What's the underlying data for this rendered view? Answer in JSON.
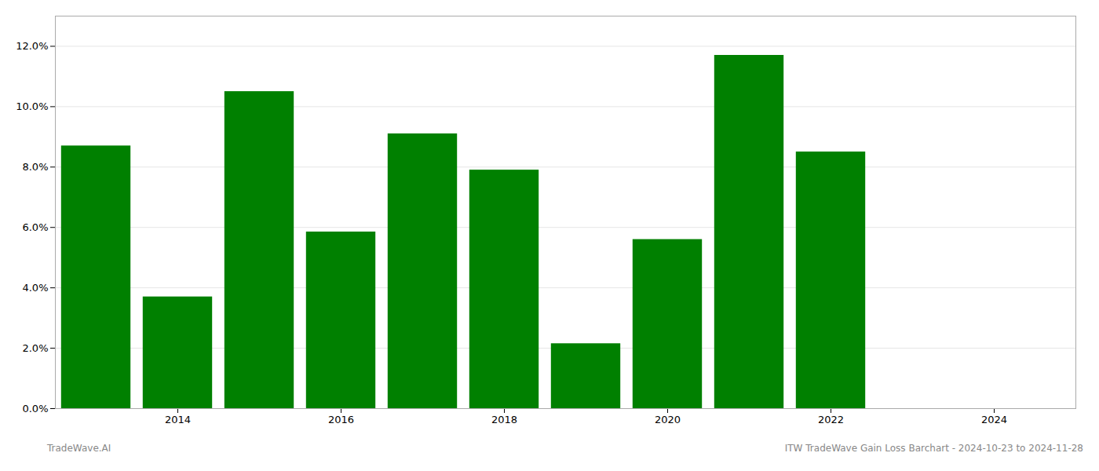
{
  "chart_data": {
    "type": "bar",
    "x": [
      2013,
      2014,
      2015,
      2016,
      2017,
      2018,
      2019,
      2020,
      2021,
      2022
    ],
    "values": [
      0.087,
      0.037,
      0.105,
      0.0585,
      0.091,
      0.079,
      0.0215,
      0.056,
      0.117,
      0.085
    ],
    "color": "#008000",
    "xlim": [
      2012.5,
      2025.0
    ],
    "xticks": [
      2014,
      2016,
      2018,
      2020,
      2022,
      2024
    ],
    "ylim": [
      0,
      0.13
    ],
    "yticks": [
      {
        "value": 0.0,
        "label": "0.0%"
      },
      {
        "value": 0.02,
        "label": "2.0%"
      },
      {
        "value": 0.04,
        "label": "4.0%"
      },
      {
        "value": 0.06,
        "label": "6.0%"
      },
      {
        "value": 0.08,
        "label": "8.0%"
      },
      {
        "value": 0.1,
        "label": "10.0%"
      },
      {
        "value": 0.12,
        "label": "12.0%"
      }
    ],
    "grid": true,
    "annotations": [
      "TradeWave.AI",
      "ITW TradeWave Gain Loss Barchart - 2024-10-23 to 2024-11-28"
    ]
  }
}
